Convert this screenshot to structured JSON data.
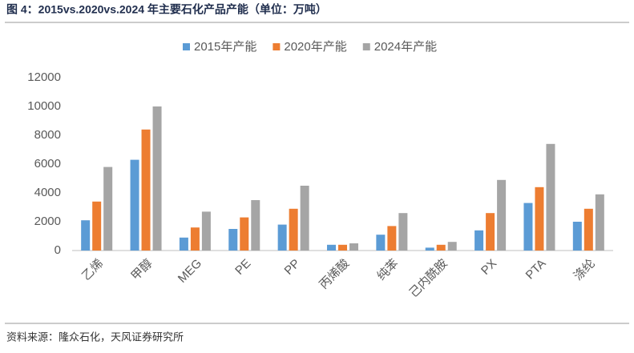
{
  "header": {
    "title": "图 4：2015vs.2020vs.2024 年主要石化产品产能（单位：万吨）"
  },
  "footer": {
    "source": "资料来源：隆众石化，天风证券研究所"
  },
  "chart_data": {
    "type": "bar",
    "categories": [
      "乙烯",
      "甲醇",
      "MEG",
      "PE",
      "PP",
      "丙烯酸",
      "纯苯",
      "己内酰胺",
      "PX",
      "PTA",
      "涤纶"
    ],
    "series": [
      {
        "name": "2015年产能",
        "color": "#5b9bd5",
        "values": [
          2100,
          6300,
          900,
          1500,
          1800,
          400,
          1100,
          200,
          1400,
          3300,
          2000
        ]
      },
      {
        "name": "2020年产能",
        "color": "#ed7d31",
        "values": [
          3400,
          8400,
          1600,
          2300,
          2900,
          400,
          1700,
          400,
          2600,
          4400,
          2900
        ]
      },
      {
        "name": "2024年产能",
        "color": "#a5a5a5",
        "values": [
          5800,
          10000,
          2700,
          3500,
          4500,
          500,
          2600,
          600,
          4900,
          7400,
          3900
        ]
      }
    ],
    "ylim": [
      0,
      12000
    ],
    "yticks": [
      0,
      2000,
      4000,
      6000,
      8000,
      10000,
      12000
    ],
    "grid": false,
    "legend": "top"
  }
}
